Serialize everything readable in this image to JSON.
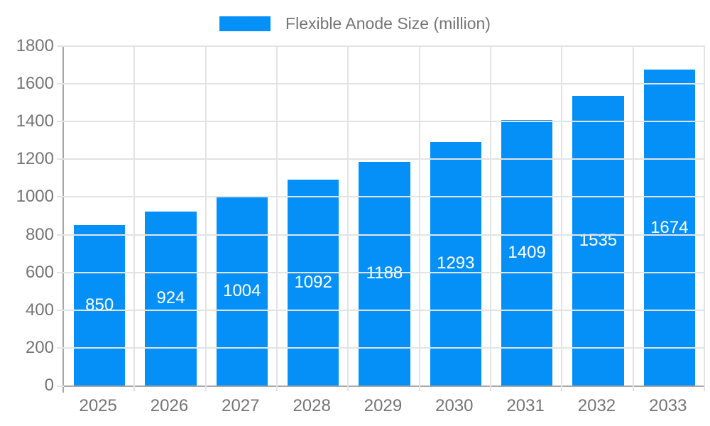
{
  "legend": {
    "label": "Flexible Anode Size (million)"
  },
  "colors": {
    "bar": "#0590f8",
    "grid": "#e3e3e3",
    "axis": "#a6a6a6",
    "tick_text": "#757575",
    "value_label": "#ffffff",
    "background": "#ffffff"
  },
  "chart_data": {
    "type": "bar",
    "title": "Flexible Anode Size (million)",
    "series_name": "Flexible Anode Size (million)",
    "categories": [
      "2025",
      "2026",
      "2027",
      "2028",
      "2029",
      "2030",
      "2031",
      "2032",
      "2033"
    ],
    "values": [
      850,
      924,
      1004,
      1092,
      1188,
      1293,
      1409,
      1535,
      1674
    ],
    "xlabel": "",
    "ylabel": "",
    "ylim": [
      0,
      1800
    ],
    "ytick_step": 200,
    "grid": "on",
    "legend_position": "top",
    "value_labels": "inside-center"
  }
}
